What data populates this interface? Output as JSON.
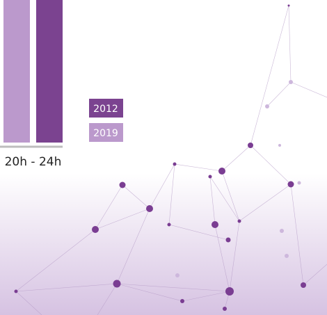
{
  "chart_data": {
    "type": "bar",
    "categories": [
      "20h - 24h"
    ],
    "series": [
      {
        "name": "2019",
        "color": "#bb99cc",
        "values": [
          100
        ]
      },
      {
        "name": "2012",
        "color": "#7b4390",
        "values": [
          100
        ]
      }
    ],
    "ylim": [
      0,
      100
    ]
  }
}
